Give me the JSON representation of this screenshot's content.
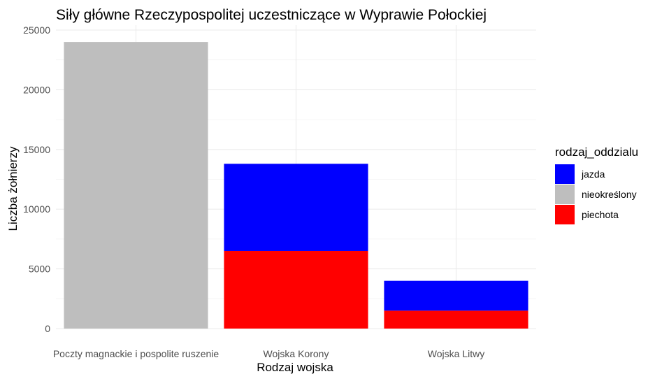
{
  "chart_data": {
    "type": "bar",
    "stacked": true,
    "title": "Siły główne Rzeczypospolitej uczestniczące w Wyprawie Połockiej",
    "xlabel": "Rodzaj wojska",
    "ylabel": "Liczba żołnierzy",
    "categories": [
      "Poczty magnackie i pospolite ruszenie",
      "Wojska Korony",
      "Wojska Litwy"
    ],
    "ylim": [
      0,
      25000
    ],
    "yticks": [
      0,
      5000,
      10000,
      15000,
      20000,
      25000
    ],
    "grid": true,
    "legend": {
      "title": "rodzaj_oddzialu",
      "position": "right",
      "entries": [
        "jazda",
        "nieokreślony",
        "piechota"
      ]
    },
    "stack_order": [
      "piechota",
      "nieokreślony",
      "jazda"
    ],
    "series": [
      {
        "name": "jazda",
        "color": "#0000FF",
        "values": [
          0,
          7300,
          2500
        ]
      },
      {
        "name": "nieokreślony",
        "color": "#BEBEBE",
        "values": [
          24000,
          0,
          0
        ]
      },
      {
        "name": "piechota",
        "color": "#FF0000",
        "values": [
          0,
          6500,
          1500
        ]
      }
    ]
  }
}
